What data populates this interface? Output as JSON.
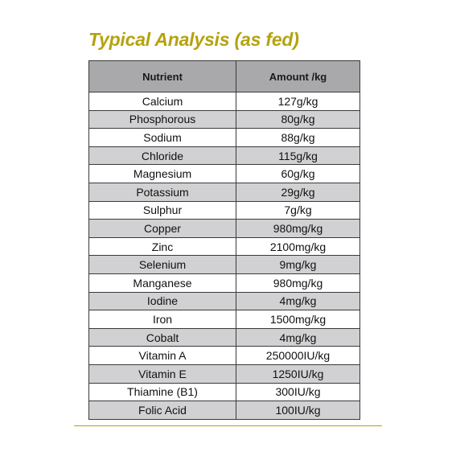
{
  "colors": {
    "title": "#b5a20e",
    "header_bg": "#a9a9ab",
    "row_alt_bg": "#d1d1d3",
    "rule": "#b5a20e"
  },
  "title": "Typical Analysis (as fed)",
  "table": {
    "headers": [
      "Nutrient",
      "Amount /kg"
    ],
    "rows": [
      [
        "Calcium",
        "127g/kg"
      ],
      [
        "Phosphorous",
        "80g/kg"
      ],
      [
        "Sodium",
        "88g/kg"
      ],
      [
        "Chloride",
        "115g/kg"
      ],
      [
        "Magnesium",
        "60g/kg"
      ],
      [
        "Potassium",
        "29g/kg"
      ],
      [
        "Sulphur",
        "7g/kg"
      ],
      [
        "Copper",
        "980mg/kg"
      ],
      [
        "Zinc",
        "2100mg/kg"
      ],
      [
        "Selenium",
        "9mg/kg"
      ],
      [
        "Manganese",
        "980mg/kg"
      ],
      [
        "Iodine",
        "4mg/kg"
      ],
      [
        "Iron",
        "1500mg/kg"
      ],
      [
        "Cobalt",
        "4mg/kg"
      ],
      [
        "Vitamin A",
        "250000IU/kg"
      ],
      [
        "Vitamin E",
        "1250IU/kg"
      ],
      [
        "Thiamine (B1)",
        "300IU/kg"
      ],
      [
        "Folic Acid",
        "100IU/kg"
      ]
    ]
  }
}
